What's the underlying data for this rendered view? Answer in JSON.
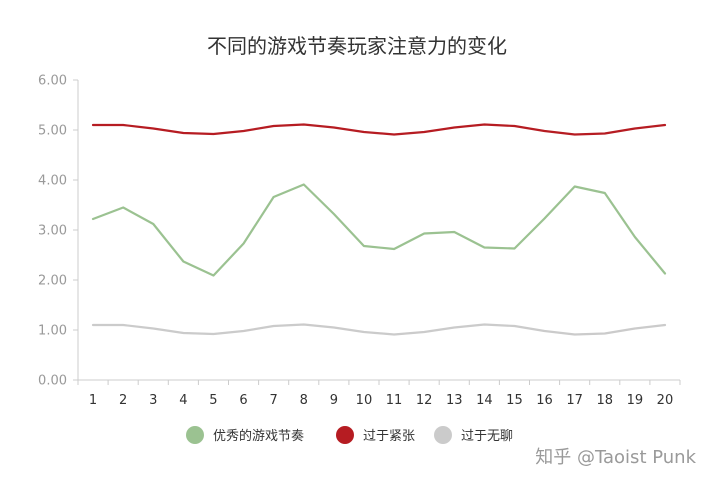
{
  "chart_data": {
    "type": "line",
    "title": "不同的游戏节奏玩家注意力的变化",
    "xlabel": "",
    "ylabel": "",
    "x": [
      1,
      2,
      3,
      4,
      5,
      6,
      7,
      8,
      9,
      10,
      11,
      12,
      13,
      14,
      15,
      16,
      17,
      18,
      19,
      20
    ],
    "ylim": [
      0,
      6
    ],
    "yticks": [
      "0.00",
      "1.00",
      "2.00",
      "3.00",
      "4.00",
      "5.00",
      "6.00"
    ],
    "grid": false,
    "legend_position": "bottom",
    "series": [
      {
        "name": "优秀的游戏节奏",
        "color": "#9bc291",
        "values": [
          3.22,
          3.45,
          3.12,
          2.37,
          2.09,
          2.73,
          3.66,
          3.91,
          3.32,
          2.68,
          2.62,
          2.93,
          2.96,
          2.65,
          2.63,
          3.23,
          3.87,
          3.74,
          2.86,
          2.13
        ]
      },
      {
        "name": "过于紧张",
        "color": "#b61c22",
        "values": [
          5.1,
          5.1,
          5.03,
          4.94,
          4.92,
          4.98,
          5.08,
          5.11,
          5.05,
          4.96,
          4.91,
          4.96,
          5.05,
          5.11,
          5.08,
          4.98,
          4.91,
          4.93,
          5.03,
          5.1
        ]
      },
      {
        "name": "过于无聊",
        "color": "#cbcbcb",
        "values": [
          1.1,
          1.1,
          1.03,
          0.94,
          0.92,
          0.98,
          1.08,
          1.11,
          1.05,
          0.96,
          0.91,
          0.96,
          1.05,
          1.11,
          1.08,
          0.98,
          0.91,
          0.93,
          1.03,
          1.1
        ]
      }
    ]
  },
  "watermark": "知乎 @Taoist Punk"
}
